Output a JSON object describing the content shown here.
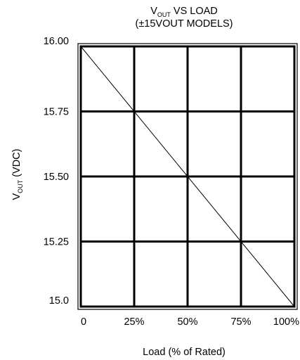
{
  "chart_data": {
    "type": "line",
    "title_line1_main": "V",
    "title_line1_sub": "OUT",
    "title_line1_rest": " VS LOAD",
    "title_line2": "(±15VOUT MODELS)",
    "ylabel_main": "V",
    "ylabel_sub": "OUT",
    "ylabel_rest": " (VDC)",
    "xlabel": "Load (% of Rated)",
    "x_tick_labels": [
      "0",
      "25%",
      "50%",
      "75%",
      "100%"
    ],
    "y_tick_labels": [
      "16.00",
      "15.75",
      "15.50",
      "15.25",
      "15.0"
    ],
    "x_ticks": [
      0,
      25,
      50,
      75,
      100
    ],
    "y_ticks": [
      16.0,
      15.75,
      15.5,
      15.25,
      15.0
    ],
    "xlim": [
      0,
      100
    ],
    "ylim": [
      15.0,
      16.0
    ],
    "grid": true,
    "series": [
      {
        "x": [
          0,
          100
        ],
        "y": [
          16.0,
          15.0
        ]
      }
    ]
  }
}
